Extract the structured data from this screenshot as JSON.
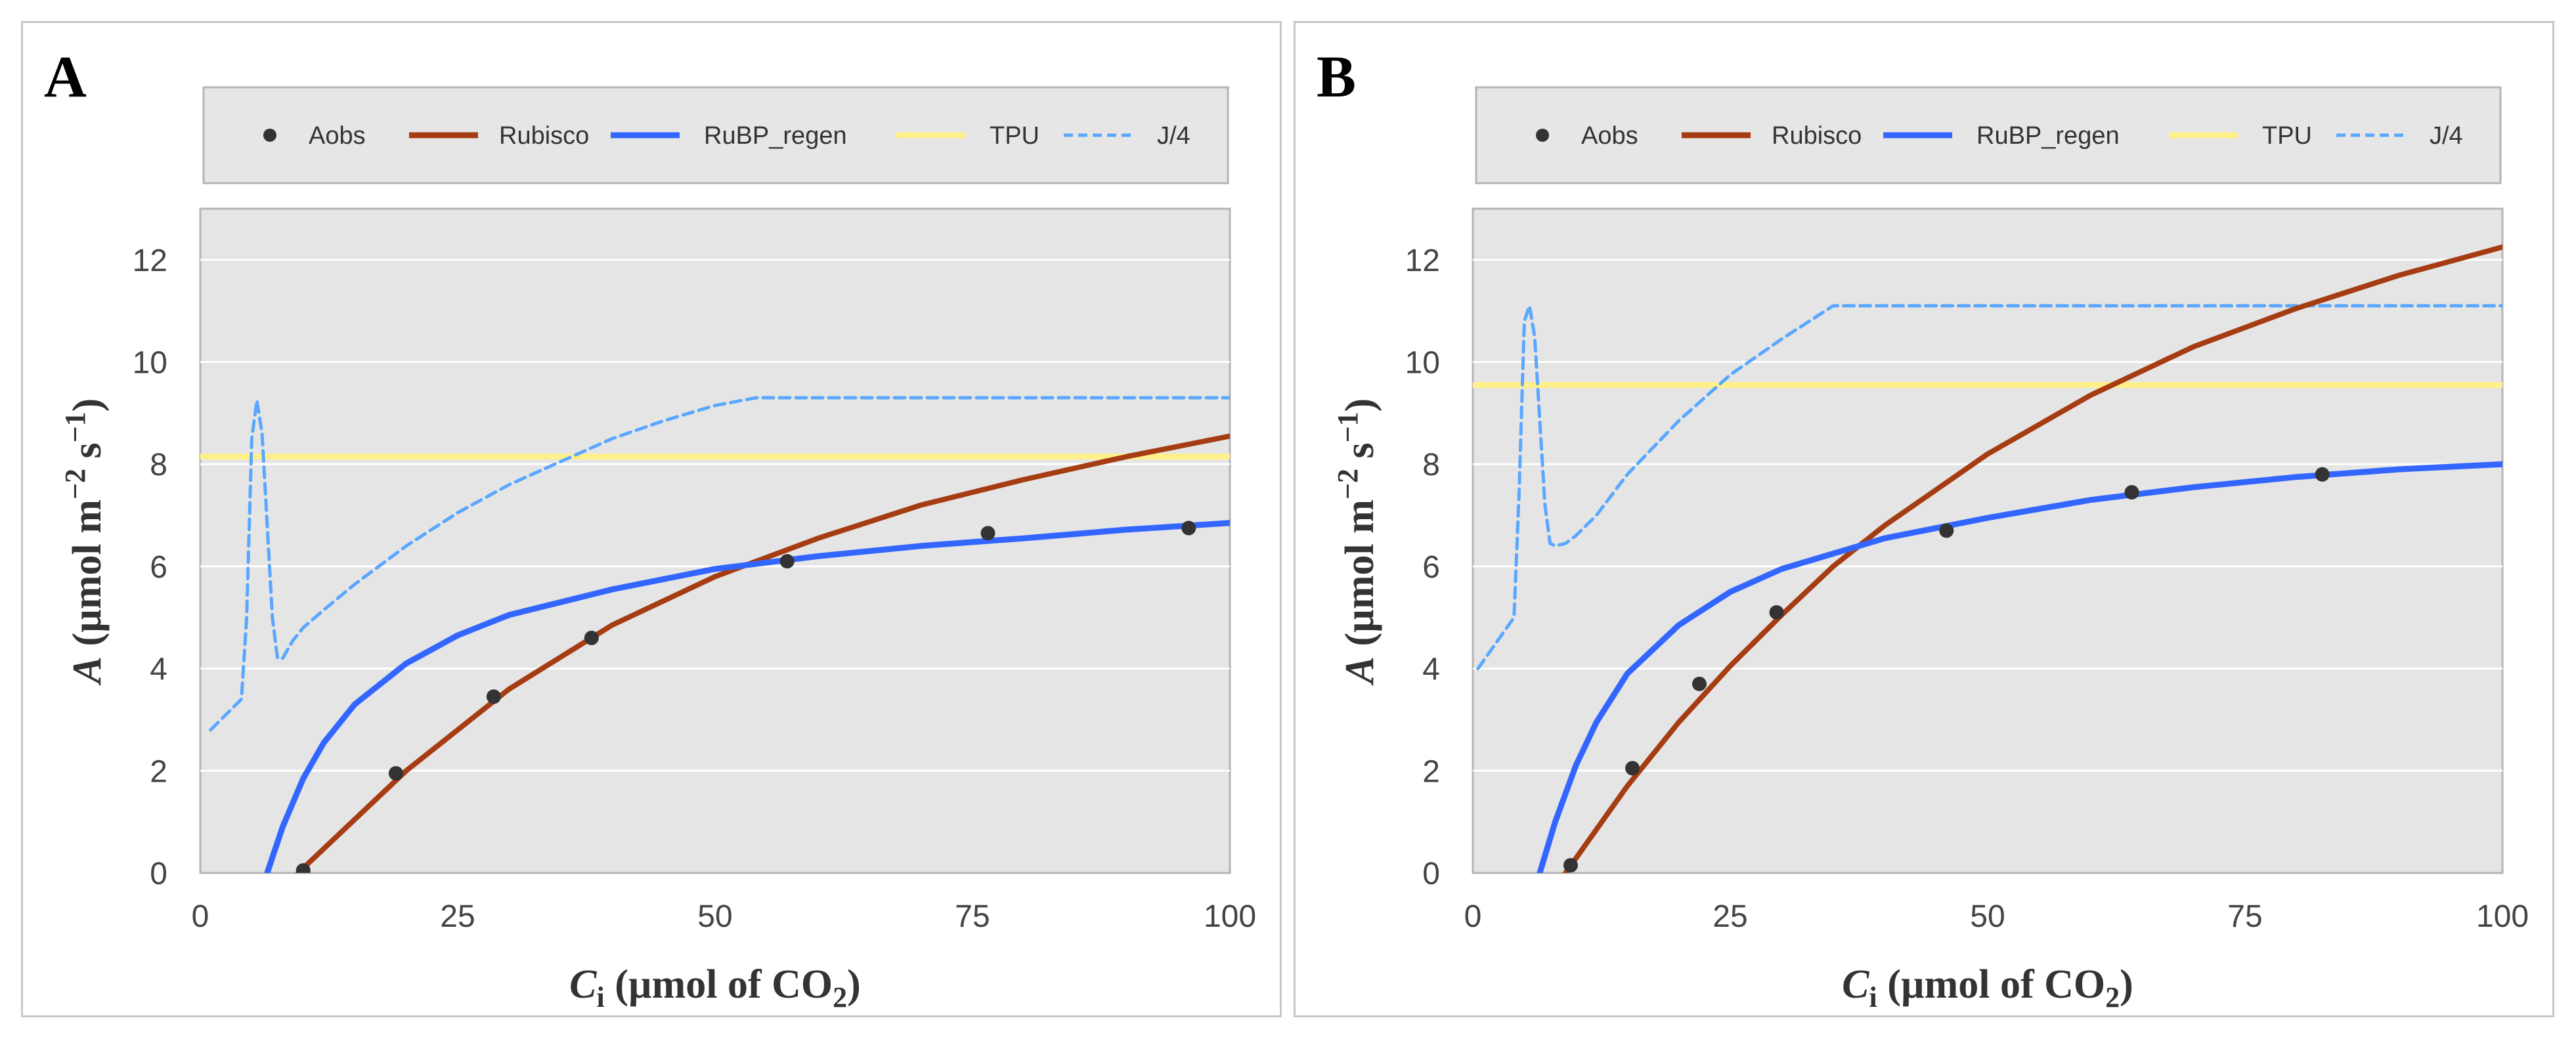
{
  "colors": {
    "background": "#e5e5e5",
    "grid": "#ffffff",
    "aobs": "#333333",
    "rubisco": "#a63c12",
    "rubp_regen": "#3366ff",
    "tpu": "#fff08a",
    "j4": "#5aa7ff"
  },
  "chart_data": [
    {
      "panel": "A",
      "type": "line",
      "xlabel": "Ci (µmol of CO2)",
      "xlabel_parts": [
        "C",
        "i",
        " (µmol of CO",
        "2",
        ")"
      ],
      "ylabel": "A (µmol m−2 s−1)",
      "ylabel_parts": [
        "A",
        " (µmol m",
        "−2",
        " s",
        "−1",
        ")"
      ],
      "xlim": [
        0,
        100
      ],
      "ylim": [
        0,
        13
      ],
      "xticks": [
        0,
        25,
        50,
        75,
        100
      ],
      "yticks": [
        0,
        2,
        4,
        6,
        8,
        10,
        12
      ],
      "legend": [
        "Aobs",
        "Rubisco",
        "RuBP_regen",
        "TPU",
        "J/4"
      ],
      "legend_position": "top",
      "series": [
        {
          "name": "Aobs",
          "kind": "scatter",
          "x": [
            10,
            19,
            28.5,
            38,
            57,
            76.5,
            96
          ],
          "y": [
            0.05,
            1.95,
            3.45,
            4.6,
            6.1,
            6.65,
            6.75
          ]
        },
        {
          "name": "Rubisco",
          "kind": "line",
          "x": [
            9.5,
            20,
            30,
            40,
            50,
            60,
            70,
            80,
            90,
            100
          ],
          "y": [
            0,
            2.0,
            3.6,
            4.85,
            5.8,
            6.55,
            7.2,
            7.7,
            8.15,
            8.55
          ]
        },
        {
          "name": "RuBP_regen",
          "kind": "line",
          "x": [
            6.5,
            8,
            10,
            12,
            15,
            20,
            25,
            30,
            40,
            50,
            60,
            70,
            80,
            90,
            100
          ],
          "y": [
            0,
            0.9,
            1.85,
            2.55,
            3.3,
            4.1,
            4.65,
            5.05,
            5.55,
            5.95,
            6.2,
            6.4,
            6.55,
            6.72,
            6.85
          ]
        },
        {
          "name": "TPU",
          "kind": "line",
          "x": [
            0,
            100
          ],
          "y": [
            8.15,
            8.15
          ]
        },
        {
          "name": "J/4",
          "kind": "dashed",
          "x": [
            1,
            4,
            4.5,
            5,
            5.5,
            6,
            7,
            7.5,
            8,
            9,
            10,
            12,
            15,
            20,
            25,
            30,
            35,
            40,
            45,
            50,
            54,
            60,
            70,
            80,
            90,
            100
          ],
          "y": [
            2.8,
            3.4,
            5.0,
            8.5,
            9.25,
            8.6,
            5.0,
            4.2,
            4.2,
            4.55,
            4.8,
            5.15,
            5.65,
            6.4,
            7.05,
            7.6,
            8.05,
            8.5,
            8.85,
            9.15,
            9.3,
            9.3,
            9.3,
            9.3,
            9.3,
            9.3
          ]
        }
      ]
    },
    {
      "panel": "B",
      "type": "line",
      "xlabel": "Ci (µmol of CO2)",
      "xlabel_parts": [
        "C",
        "i",
        " (µmol of CO",
        "2",
        ")"
      ],
      "ylabel": "A (µmol m−2 s−1)",
      "ylabel_parts": [
        "A",
        " (µmol m",
        "−2",
        " s",
        "−1",
        ")"
      ],
      "xlim": [
        0,
        100
      ],
      "ylim": [
        0,
        13
      ],
      "xticks": [
        0,
        25,
        50,
        75,
        100
      ],
      "yticks": [
        0,
        2,
        4,
        6,
        8,
        10,
        12
      ],
      "legend": [
        "Aobs",
        "Rubisco",
        "RuBP_regen",
        "TPU",
        "J/4"
      ],
      "legend_position": "top",
      "series": [
        {
          "name": "Aobs",
          "kind": "scatter",
          "x": [
            9.5,
            15.5,
            22,
            29.5,
            46,
            64,
            82.5
          ],
          "y": [
            0.15,
            2.05,
            3.7,
            5.1,
            6.7,
            7.45,
            7.8
          ]
        },
        {
          "name": "Rubisco",
          "kind": "line",
          "x": [
            9,
            15,
            20,
            25,
            30,
            35,
            40,
            50,
            60,
            70,
            80,
            90,
            100
          ],
          "y": [
            0,
            1.7,
            2.95,
            4.05,
            5.05,
            6.0,
            6.8,
            8.2,
            9.35,
            10.3,
            11.05,
            11.7,
            12.25
          ]
        },
        {
          "name": "RuBP_regen",
          "kind": "line",
          "x": [
            6.5,
            8,
            10,
            12,
            15,
            20,
            25,
            30,
            40,
            50,
            60,
            70,
            80,
            90,
            100
          ],
          "y": [
            0,
            1.0,
            2.1,
            2.95,
            3.9,
            4.85,
            5.5,
            5.95,
            6.55,
            6.95,
            7.3,
            7.55,
            7.75,
            7.9,
            8.0
          ]
        },
        {
          "name": "TPU",
          "kind": "line",
          "x": [
            0,
            100
          ],
          "y": [
            9.55,
            9.55
          ]
        },
        {
          "name": "J/4",
          "kind": "dashed",
          "x": [
            0.5,
            4,
            4.5,
            5,
            5.5,
            6,
            7,
            7.5,
            8,
            9,
            10,
            12,
            15,
            20,
            25,
            30,
            35,
            40,
            50,
            60,
            70,
            80,
            90,
            100
          ],
          "y": [
            4.0,
            5.0,
            7.5,
            10.8,
            11.1,
            10.5,
            7.2,
            6.45,
            6.4,
            6.45,
            6.6,
            7.0,
            7.8,
            8.85,
            9.75,
            10.45,
            11.1,
            11.1,
            11.1,
            11.1,
            11.1,
            11.1,
            11.1,
            11.1
          ]
        }
      ]
    }
  ]
}
